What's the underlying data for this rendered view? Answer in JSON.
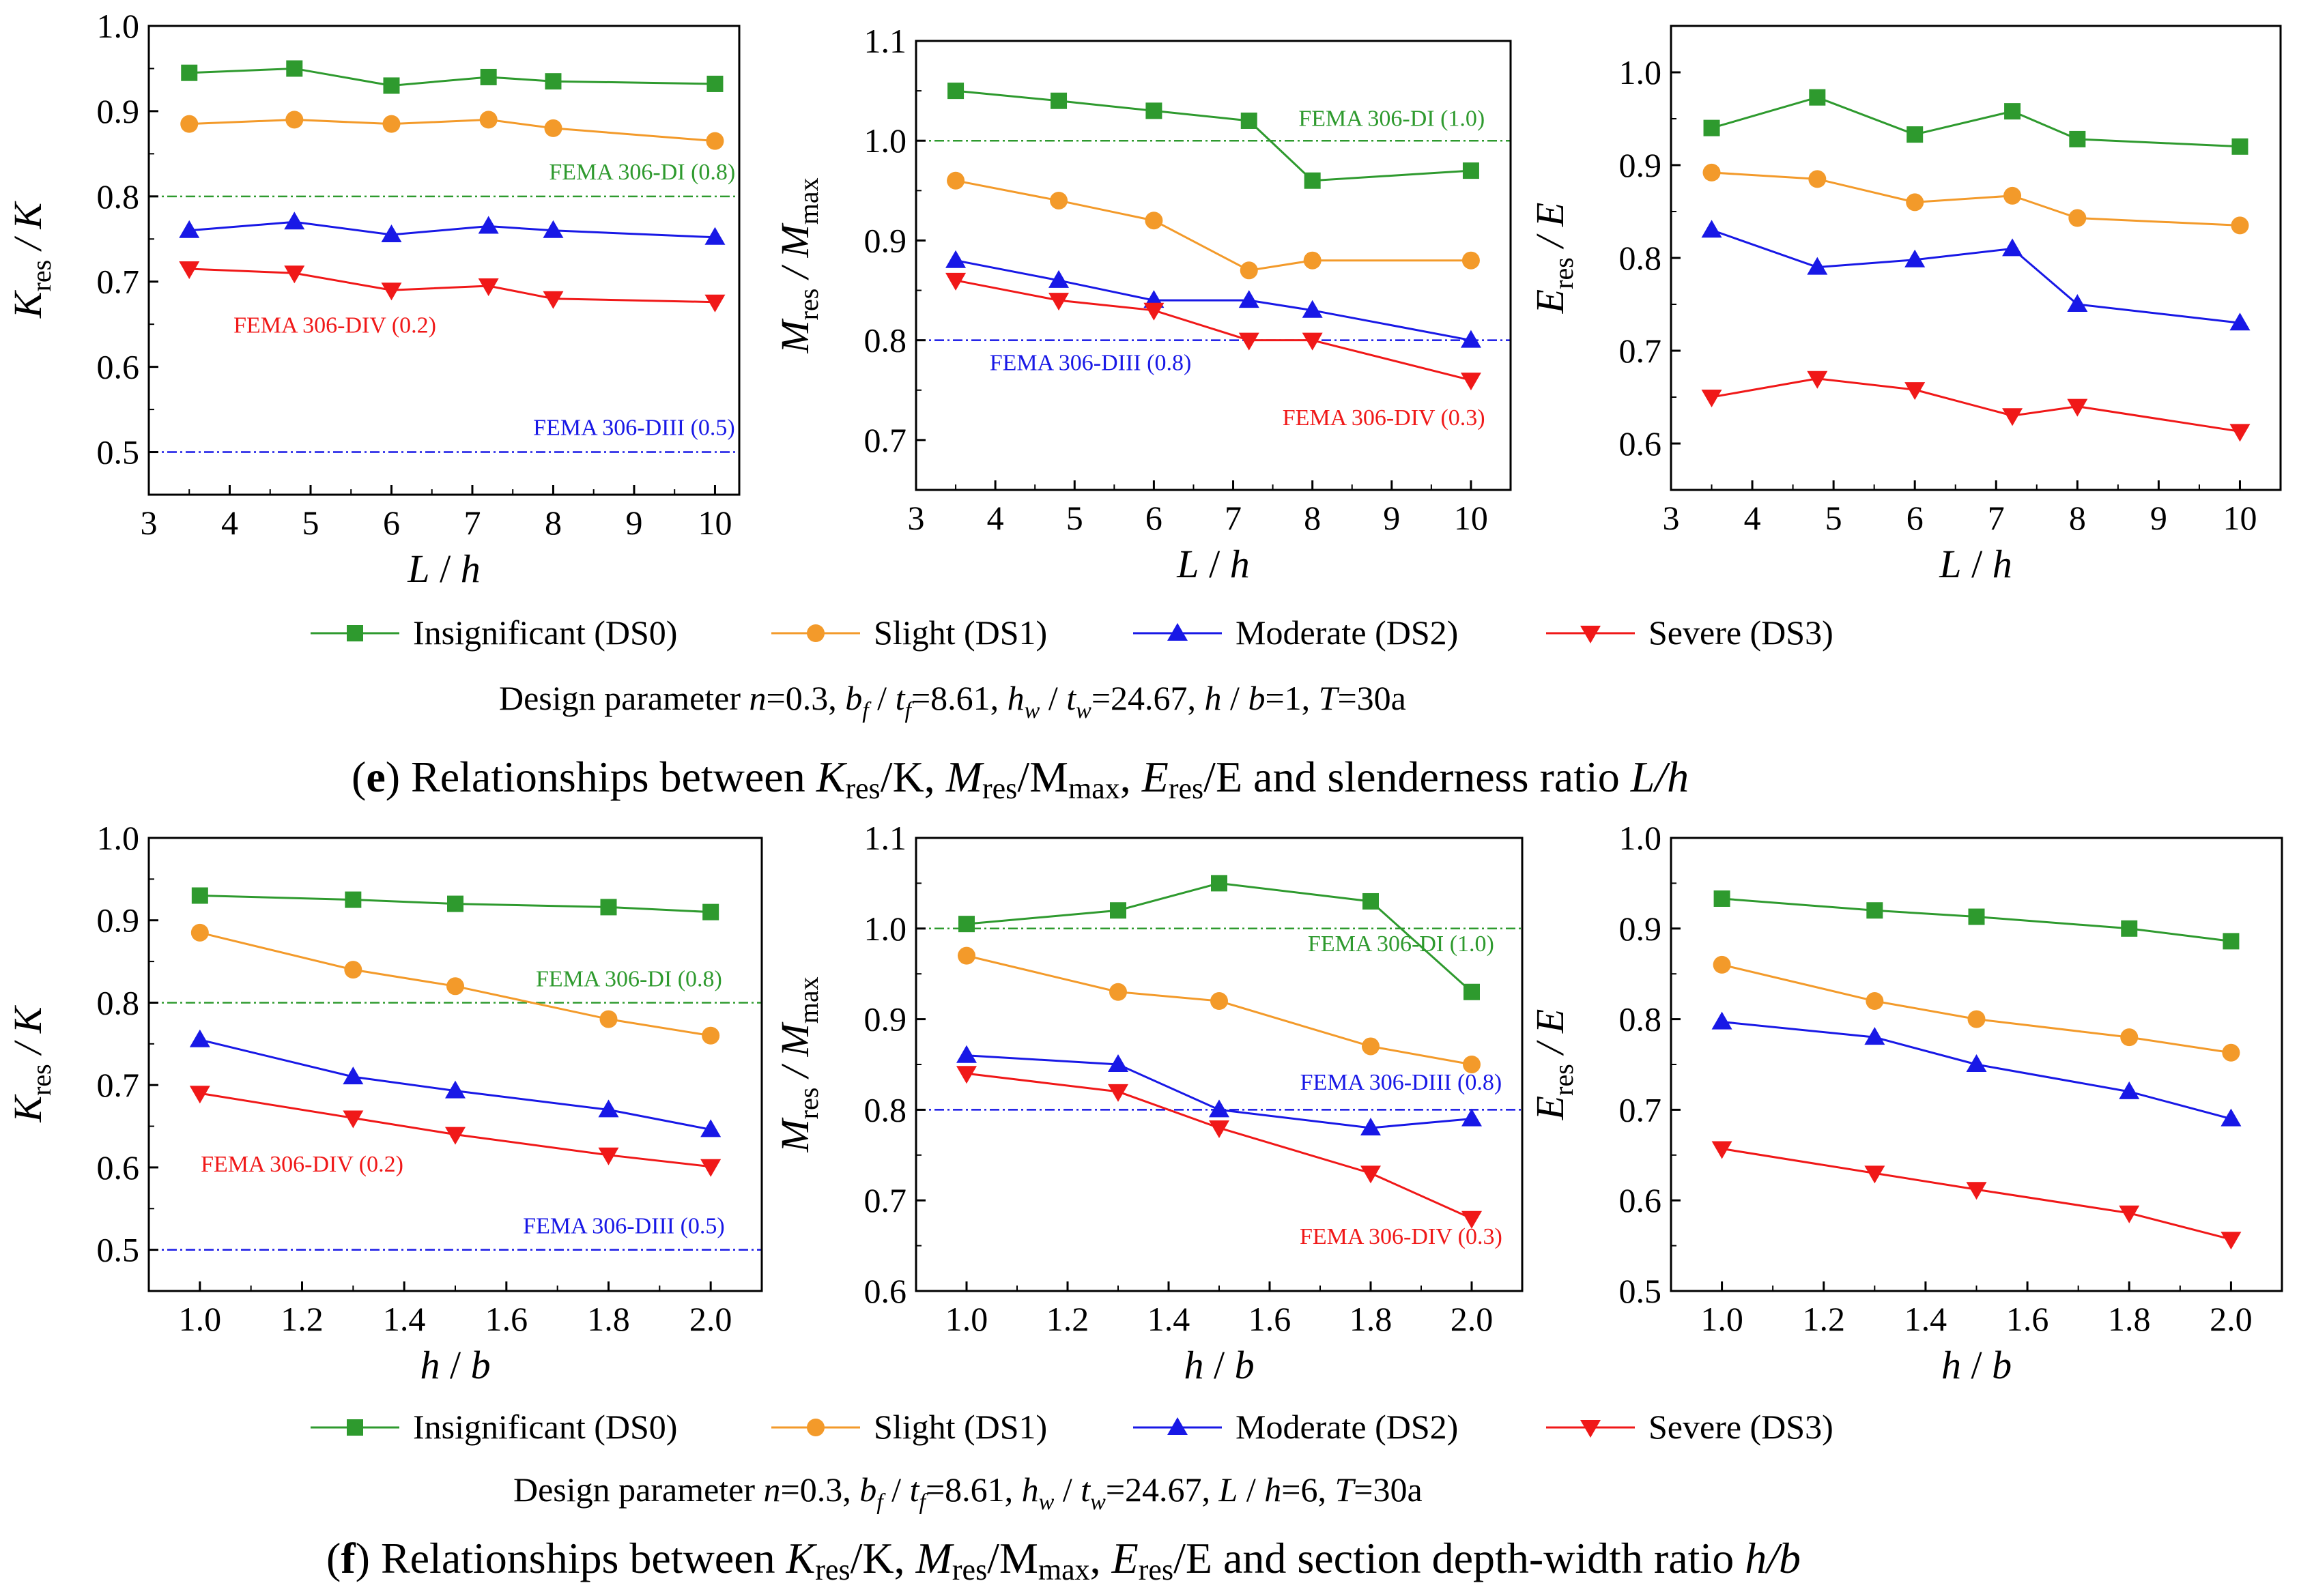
{
  "figure_captions": {
    "e": {
      "panel_letter": "e",
      "pre": " Relationships between ",
      "k_sym": "K",
      "k_sub": "res",
      "k_rest": "/K, ",
      "m_sym": "M",
      "m_sub": "res",
      "m_mid": "/M",
      "m_sub2": "max",
      "m_rest": ", ",
      "e_sym": "E",
      "e_sub": "res",
      "e_rest": "/E and slenderness ratio ",
      "tail_italic": "L/h"
    },
    "f": {
      "panel_letter": "f",
      "pre": " Relationships between ",
      "k_sym": "K",
      "k_sub": "res",
      "k_rest": "/K, ",
      "m_sym": "M",
      "m_sub": "res",
      "m_mid": "/M",
      "m_sub2": "max",
      "m_rest": ", ",
      "e_sym": "E",
      "e_sub": "res",
      "e_rest": "/E and section depth-width ratio ",
      "tail_italic": "h/b"
    }
  },
  "legend": {
    "items": [
      {
        "name": "Insignificant (DS0)",
        "color": "#2e9a2e",
        "marker": "square"
      },
      {
        "name": "Slight (DS1)",
        "color": "#f39a2a",
        "marker": "circle"
      },
      {
        "name": "Moderate (DS2)",
        "color": "#1818e6",
        "marker": "triangle-up"
      },
      {
        "name": "Severe (DS3)",
        "color": "#f01818",
        "marker": "triangle-down"
      }
    ]
  },
  "design_parameters": {
    "e": {
      "prefix": "Design parameter  ",
      "n": "n",
      "n_val": "=0.3, ",
      "bf": "b",
      "bf_sub": "f",
      "slash1": " / ",
      "tf": "t",
      "tf_sub": "f",
      "tf_val": "=8.61, ",
      "hw": "h",
      "hw_sub": "w",
      "slash2": " / ",
      "tw": "t",
      "tw_sub": "w",
      "tw_val": "=24.67, ",
      "last1": "h",
      "last_mid": " / ",
      "last2": "b",
      "last_val": "=1, ",
      "T": "T",
      "T_val": "=30a"
    },
    "f": {
      "prefix": "Design parameter  ",
      "n": "n",
      "n_val": "=0.3, ",
      "bf": "b",
      "bf_sub": "f",
      "slash1": " / ",
      "tf": "t",
      "tf_sub": "f",
      "tf_val": "=8.61, ",
      "hw": "h",
      "hw_sub": "w",
      "slash2": " / ",
      "tw": "t",
      "tw_sub": "w",
      "tw_val": "=24.67, ",
      "last1": "L",
      "last_mid": " / ",
      "last2": "h",
      "last_val": "=6, ",
      "T": "T",
      "T_val": "=30a"
    }
  },
  "colors": {
    "DS0": "#2e9a2e",
    "DS1": "#f39a2a",
    "DS2": "#1818e6",
    "DS3": "#f01818",
    "axis": "#000000"
  },
  "chart_data": [
    {
      "id": "e-K",
      "type": "line",
      "xlabel": {
        "a": "L",
        "sep": " / ",
        "b": "h"
      },
      "ylabel": {
        "sym": "K",
        "sub": "res",
        "rest": " / K"
      },
      "xlim": [
        3,
        10.3
      ],
      "ylim": [
        0.45,
        1.0
      ],
      "xticks": [
        3,
        4,
        5,
        6,
        7,
        8,
        9,
        10
      ],
      "xtick_labels": [
        "3",
        "4",
        "5",
        "6",
        "7",
        "8",
        "9",
        "10"
      ],
      "yticks": [
        0.5,
        0.6,
        0.7,
        0.8,
        0.9,
        1.0
      ],
      "ytick_labels": [
        "0.5",
        "0.6",
        "0.7",
        "0.8",
        "0.9",
        "1.0"
      ],
      "x": [
        3.5,
        4.8,
        6,
        7.2,
        8,
        10
      ],
      "series": [
        {
          "name": "Insignificant (DS0)",
          "values": [
            0.945,
            0.95,
            0.93,
            0.94,
            0.935,
            0.932
          ]
        },
        {
          "name": "Slight (DS1)",
          "values": [
            0.885,
            0.89,
            0.885,
            0.89,
            0.88,
            0.865
          ]
        },
        {
          "name": "Moderate (DS2)",
          "values": [
            0.76,
            0.77,
            0.755,
            0.765,
            0.76,
            0.752
          ]
        },
        {
          "name": "Severe (DS3)",
          "values": [
            0.715,
            0.71,
            0.69,
            0.695,
            0.68,
            0.676
          ]
        }
      ],
      "reference_lines": [
        {
          "y": 0.8,
          "label": "FEMA 306-DI (0.8)",
          "color": "#2e9a2e",
          "label_x": 9.1,
          "label_y": 0.82,
          "anchor": "middle"
        },
        {
          "y": 0.5,
          "label": "FEMA 306-DIII (0.5)",
          "color": "#1818e6",
          "label_x": 9.0,
          "label_y": 0.52,
          "anchor": "middle"
        }
      ],
      "annotations": [
        {
          "label": "FEMA 306-DIV (0.2)",
          "color": "#f01818",
          "x": 5.3,
          "y": 0.64
        }
      ]
    },
    {
      "id": "e-M",
      "type": "line",
      "xlabel": {
        "a": "L",
        "sep": " / ",
        "b": "h"
      },
      "ylabel": {
        "sym": "M",
        "sub": "res",
        "rest": " / M",
        "sub2": "max"
      },
      "xlim": [
        3,
        10.5
      ],
      "ylim": [
        0.65,
        1.1
      ],
      "xticks": [
        3,
        4,
        5,
        6,
        7,
        8,
        9,
        10
      ],
      "xtick_labels": [
        "3",
        "4",
        "5",
        "6",
        "7",
        "8",
        "9",
        "10"
      ],
      "yticks": [
        0.7,
        0.8,
        0.9,
        1.0,
        1.1
      ],
      "ytick_labels": [
        "0.7",
        "0.8",
        "0.9",
        "1.0",
        "1.1"
      ],
      "x": [
        3.5,
        4.8,
        6,
        7.2,
        8,
        10
      ],
      "series": [
        {
          "name": "Insignificant (DS0)",
          "values": [
            1.05,
            1.04,
            1.03,
            1.02,
            0.96,
            0.97
          ]
        },
        {
          "name": "Slight (DS1)",
          "values": [
            0.96,
            0.94,
            0.92,
            0.87,
            0.88,
            0.88
          ]
        },
        {
          "name": "Moderate (DS2)",
          "values": [
            0.88,
            0.86,
            0.84,
            0.84,
            0.83,
            0.8
          ]
        },
        {
          "name": "Severe (DS3)",
          "values": [
            0.86,
            0.84,
            0.83,
            0.8,
            0.8,
            0.76
          ]
        }
      ],
      "reference_lines": [
        {
          "y": 1.0,
          "label": "FEMA 306-DI (1.0)",
          "color": "#2e9a2e",
          "label_x": 9.0,
          "label_y": 1.015,
          "anchor": "middle"
        },
        {
          "y": 0.8,
          "label": "FEMA 306-DIII (0.8)",
          "color": "#1818e6",
          "label_x": 5.2,
          "label_y": 0.77,
          "anchor": "middle"
        }
      ],
      "annotations": [
        {
          "label": "FEMA 306-DIV (0.3)",
          "color": "#f01818",
          "x": 8.9,
          "y": 0.715
        }
      ]
    },
    {
      "id": "e-E",
      "type": "line",
      "xlabel": {
        "a": "L",
        "sep": " / ",
        "b": "h"
      },
      "ylabel": {
        "sym": "E",
        "sub": "res",
        "rest": " / E"
      },
      "xlim": [
        3,
        10.5
      ],
      "ylim": [
        0.55,
        1.05
      ],
      "xticks": [
        3,
        4,
        5,
        6,
        7,
        8,
        9,
        10
      ],
      "xtick_labels": [
        "3",
        "4",
        "5",
        "6",
        "7",
        "8",
        "9",
        "10"
      ],
      "yticks": [
        0.6,
        0.7,
        0.8,
        0.9,
        1.0
      ],
      "ytick_labels": [
        "0.6",
        "0.7",
        "0.8",
        "0.9",
        "1.0"
      ],
      "x": [
        3.5,
        4.8,
        6,
        7.2,
        8,
        10
      ],
      "series": [
        {
          "name": "Insignificant (DS0)",
          "values": [
            0.94,
            0.973,
            0.933,
            0.958,
            0.928,
            0.92
          ]
        },
        {
          "name": "Slight (DS1)",
          "values": [
            0.892,
            0.885,
            0.86,
            0.867,
            0.843,
            0.835
          ]
        },
        {
          "name": "Moderate (DS2)",
          "values": [
            0.83,
            0.79,
            0.798,
            0.81,
            0.75,
            0.73
          ]
        },
        {
          "name": "Severe (DS3)",
          "values": [
            0.65,
            0.67,
            0.658,
            0.63,
            0.64,
            0.613
          ]
        }
      ],
      "reference_lines": [],
      "annotations": []
    },
    {
      "id": "f-K",
      "type": "line",
      "xlabel": {
        "a": "h",
        "sep": " / ",
        "b": "b"
      },
      "ylabel": {
        "sym": "K",
        "sub": "res",
        "rest": " / K"
      },
      "xlim": [
        0.9,
        2.1
      ],
      "ylim": [
        0.45,
        1.0
      ],
      "xticks": [
        1.0,
        1.2,
        1.4,
        1.6,
        1.8,
        2.0
      ],
      "xtick_labels": [
        "1.0",
        "1.2",
        "1.4",
        "1.6",
        "1.8",
        "2.0"
      ],
      "yticks": [
        0.5,
        0.6,
        0.7,
        0.8,
        0.9,
        1.0
      ],
      "ytick_labels": [
        "0.5",
        "0.6",
        "0.7",
        "0.8",
        "0.9",
        "1.0"
      ],
      "x": [
        1.0,
        1.3,
        1.5,
        1.8,
        2.0
      ],
      "series": [
        {
          "name": "Insignificant (DS0)",
          "values": [
            0.93,
            0.925,
            0.92,
            0.916,
            0.91
          ]
        },
        {
          "name": "Slight (DS1)",
          "values": [
            0.885,
            0.84,
            0.82,
            0.78,
            0.76
          ]
        },
        {
          "name": "Moderate (DS2)",
          "values": [
            0.755,
            0.71,
            0.693,
            0.67,
            0.646
          ]
        },
        {
          "name": "Severe (DS3)",
          "values": [
            0.69,
            0.66,
            0.64,
            0.615,
            0.601
          ]
        }
      ],
      "reference_lines": [
        {
          "y": 0.8,
          "label": "FEMA 306-DI (0.8)",
          "color": "#2e9a2e",
          "label_x": 1.84,
          "label_y": 0.82,
          "anchor": "middle"
        },
        {
          "y": 0.5,
          "label": "FEMA 306-DIII (0.5)",
          "color": "#1818e6",
          "label_x": 1.83,
          "label_y": 0.52,
          "anchor": "middle"
        }
      ],
      "annotations": [
        {
          "label": "FEMA 306-DIV (0.2)",
          "color": "#f01818",
          "x": 1.2,
          "y": 0.595
        }
      ]
    },
    {
      "id": "f-M",
      "type": "line",
      "xlabel": {
        "a": "h",
        "sep": " / ",
        "b": "b"
      },
      "ylabel": {
        "sym": "M",
        "sub": "res",
        "rest": " / M",
        "sub2": "max"
      },
      "xlim": [
        0.9,
        2.1
      ],
      "ylim": [
        0.6,
        1.1
      ],
      "xticks": [
        1.0,
        1.2,
        1.4,
        1.6,
        1.8,
        2.0
      ],
      "xtick_labels": [
        "1.0",
        "1.2",
        "1.4",
        "1.6",
        "1.8",
        "2.0"
      ],
      "yticks": [
        0.6,
        0.7,
        0.8,
        0.9,
        1.0,
        1.1
      ],
      "ytick_labels": [
        "0.6",
        "0.7",
        "0.8",
        "0.9",
        "1.0",
        "1.1"
      ],
      "x": [
        1.0,
        1.3,
        1.5,
        1.8,
        2.0
      ],
      "series": [
        {
          "name": "Insignificant (DS0)",
          "values": [
            1.005,
            1.02,
            1.05,
            1.03,
            0.93
          ]
        },
        {
          "name": "Slight (DS1)",
          "values": [
            0.97,
            0.93,
            0.92,
            0.87,
            0.85
          ]
        },
        {
          "name": "Moderate (DS2)",
          "values": [
            0.86,
            0.85,
            0.8,
            0.78,
            0.79
          ]
        },
        {
          "name": "Severe (DS3)",
          "values": [
            0.84,
            0.82,
            0.78,
            0.73,
            0.68
          ]
        }
      ],
      "reference_lines": [
        {
          "y": 1.0,
          "label": "FEMA 306-DI (1.0)",
          "color": "#2e9a2e",
          "label_x": 1.86,
          "label_y": 0.975,
          "anchor": "middle"
        },
        {
          "y": 0.8,
          "label": "FEMA 306-DIII (0.8)",
          "color": "#1818e6",
          "label_x": 1.86,
          "label_y": 0.822,
          "anchor": "middle"
        }
      ],
      "annotations": [
        {
          "label": "FEMA 306-DIV (0.3)",
          "color": "#f01818",
          "x": 1.86,
          "y": 0.652
        }
      ]
    },
    {
      "id": "f-E",
      "type": "line",
      "xlabel": {
        "a": "h",
        "sep": " / ",
        "b": "b"
      },
      "ylabel": {
        "sym": "E",
        "sub": "res",
        "rest": " / E"
      },
      "xlim": [
        0.9,
        2.1
      ],
      "ylim": [
        0.5,
        1.0
      ],
      "xticks": [
        1.0,
        1.2,
        1.4,
        1.6,
        1.8,
        2.0
      ],
      "xtick_labels": [
        "1.0",
        "1.2",
        "1.4",
        "1.6",
        "1.8",
        "2.0"
      ],
      "yticks": [
        0.5,
        0.6,
        0.7,
        0.8,
        0.9,
        1.0
      ],
      "ytick_labels": [
        "0.5",
        "0.6",
        "0.7",
        "0.8",
        "0.9",
        "1.0"
      ],
      "x": [
        1.0,
        1.3,
        1.5,
        1.8,
        2.0
      ],
      "series": [
        {
          "name": "Insignificant (DS0)",
          "values": [
            0.933,
            0.92,
            0.913,
            0.9,
            0.886
          ]
        },
        {
          "name": "Slight (DS1)",
          "values": [
            0.86,
            0.82,
            0.8,
            0.78,
            0.763
          ]
        },
        {
          "name": "Moderate (DS2)",
          "values": [
            0.797,
            0.78,
            0.75,
            0.72,
            0.69
          ]
        },
        {
          "name": "Severe (DS3)",
          "values": [
            0.657,
            0.63,
            0.612,
            0.586,
            0.557
          ]
        }
      ],
      "reference_lines": [],
      "annotations": []
    }
  ]
}
